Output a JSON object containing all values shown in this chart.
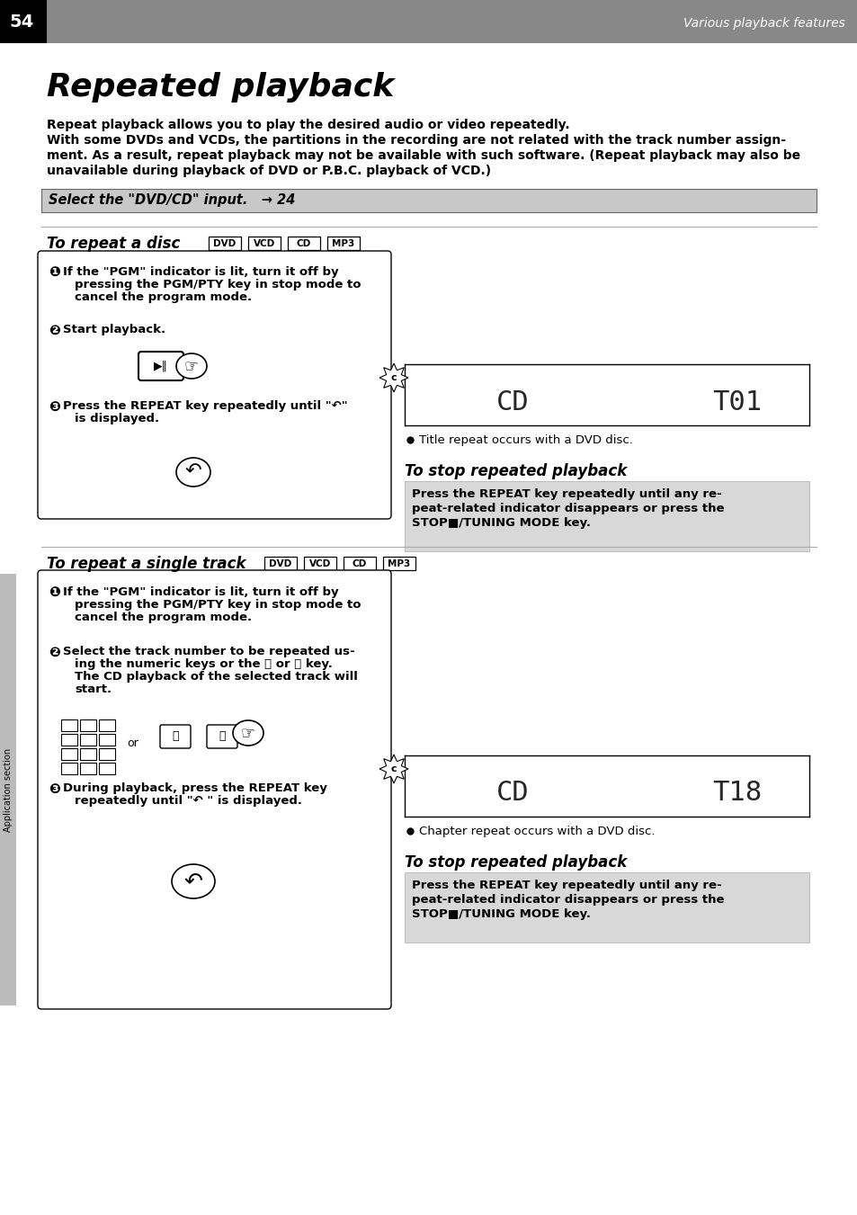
{
  "page_num": "54",
  "header_right": "Various playback features",
  "title": "Repeated playback",
  "intro1": "Repeat playback allows you to play the desired audio or video repeatedly.",
  "intro2": "With some DVDs and VCDs, the partitions in the recording are not related with the track number assign-",
  "intro3": "ment. As a result, repeat playback may not be available with such software. (Repeat playback may also be",
  "intro4": "unavailable during playback of DVD or P.B.C. playback of VCD.)",
  "select_text": "Select the \"DVD/CD\" input.   → 24",
  "section1_title": "To repeat a disc",
  "section1_badges": [
    "DVD",
    "VCD",
    "CD",
    "MP3"
  ],
  "section1_step1a": "If the \"PGM\" indicator is lit, turn it off by",
  "section1_step1b": "pressing the PGM/PTY key in stop mode to",
  "section1_step1c": "cancel the program mode.",
  "section1_step2": "Start playback.",
  "section1_step3a": "Press the REPEAT key repeatedly until \"↶\"",
  "section1_step3b": "is displayed.",
  "display1_note": "Title repeat occurs with a DVD disc.",
  "stop1_title": "To stop repeated playback",
  "stop1_line1": "Press the REPEAT key repeatedly until any re-",
  "stop1_line2": "peat-related indicator disappears or press the",
  "stop1_line3": "STOP■/TUNING MODE key.",
  "section2_title": "To repeat a single track",
  "section2_badges": [
    "DVD",
    "VCD",
    "CD",
    "MP3"
  ],
  "section2_step1a": "If the \"PGM\" indicator is lit, turn it off by",
  "section2_step1b": "pressing the PGM/PTY key in stop mode to",
  "section2_step1c": "cancel the program mode.",
  "section2_step2a": "Select the track number to be repeated us-",
  "section2_step2b": "ing the numeric keys or the ⏮ or ⏭ key.",
  "section2_step2c": "The CD playback of the selected track will",
  "section2_step2d": "start.",
  "section2_step3a": "During playback, press the REPEAT key",
  "section2_step3b": "repeatedly until \"↶ \" is displayed.",
  "display2_note": "Chapter repeat occurs with a DVD disc.",
  "stop2_title": "To stop repeated playback",
  "stop2_line1": "Press the REPEAT key repeatedly until any re-",
  "stop2_line2": "peat-related indicator disappears or press the",
  "stop2_line3": "STOP■/TUNING MODE key.",
  "sidebar_text": "Application section",
  "bg_color": "#ffffff",
  "header_bg": "#888888",
  "select_bg": "#c8c8c8",
  "stop_bg": "#d8d8d8"
}
